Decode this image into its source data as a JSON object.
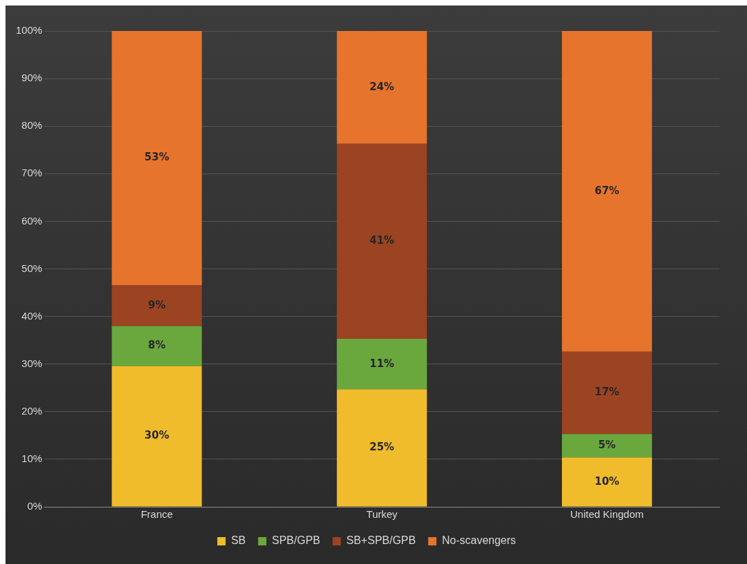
{
  "chart_data": {
    "type": "bar",
    "stacked": true,
    "categories": [
      "France",
      "Turkey",
      "United Kingdom"
    ],
    "series": [
      {
        "name": "SB",
        "color": "#f0bc2c",
        "values": [
          29.6,
          24.7,
          10.4
        ],
        "value_labels": [
          "30%",
          "25%",
          "10%"
        ]
      },
      {
        "name": "SPB/GPB",
        "color": "#6aa83e",
        "values": [
          8.4,
          10.6,
          4.9
        ],
        "value_labels": [
          "8%",
          "11%",
          "5%"
        ]
      },
      {
        "name": "SB+SPB/GPB",
        "color": "#9c4322",
        "values": [
          8.6,
          41.0,
          17.3
        ],
        "value_labels": [
          "9%",
          "41%",
          "17%"
        ]
      },
      {
        "name": "No-scavengers",
        "color": "#e7742c",
        "values": [
          53.4,
          23.7,
          67.4
        ],
        "value_labels": [
          "53%",
          "24%",
          "67%"
        ]
      }
    ],
    "ylim": [
      0,
      100
    ],
    "yticks": [
      {
        "value": 0,
        "label": "0%"
      },
      {
        "value": 10,
        "label": "10%"
      },
      {
        "value": 20,
        "label": "20%"
      },
      {
        "value": 30,
        "label": "30%"
      },
      {
        "value": 40,
        "label": "40%"
      },
      {
        "value": 50,
        "label": "50%"
      },
      {
        "value": 60,
        "label": "60%"
      },
      {
        "value": 70,
        "label": "70%"
      },
      {
        "value": 80,
        "label": "80%"
      },
      {
        "value": 90,
        "label": "90%"
      },
      {
        "value": 100,
        "label": "100%"
      }
    ],
    "grid": "y",
    "legend": "bottom"
  }
}
